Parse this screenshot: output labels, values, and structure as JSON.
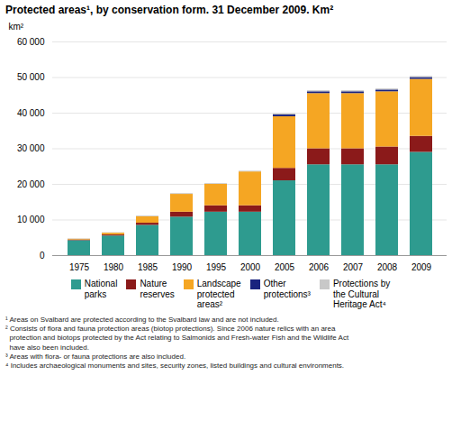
{
  "chart_data": {
    "type": "bar",
    "title": "Protected areas¹, by conservation form. 31 December 2009. Km²",
    "ylabel": "km²",
    "caption": "¹ Areas on Svalbard are protected according to the Svalbard law and are not included.\n² Consists of flora and fauna protection areas (biotop protections). Since 2006 nature relics with an area\n  protection and biotops protected by the Act relating to Salmonids and Fresh-water Fish and the Wildlife Act\n  have also been included.\n³ Areas with flora- or fauna protections are also included.\n⁴ Includes archaeological monuments and sites, security zones, listed buildings and cultural environments.",
    "categories": [
      "1975",
      "1980",
      "1985",
      "1990",
      "1995",
      "2000",
      "2005",
      "2006",
      "2007",
      "2008",
      "2009"
    ],
    "series": [
      {
        "name": "National\nparks",
        "color": "#2E9B8F",
        "values": [
          4200,
          5500,
          8500,
          10800,
          12200,
          12200,
          21000,
          25500,
          25500,
          25500,
          29000
        ]
      },
      {
        "name": "Nature\nreserves",
        "color": "#8B1A1A",
        "values": [
          200,
          300,
          600,
          1400,
          1800,
          1800,
          3500,
          4500,
          4500,
          5000,
          4500
        ]
      },
      {
        "name": "Landscape\nprotected\nareas²",
        "color": "#F5A623",
        "values": [
          200,
          500,
          1800,
          5000,
          6000,
          9500,
          14500,
          15500,
          15500,
          15500,
          16000
        ]
      },
      {
        "name": "Other\nprotections³",
        "color": "#1A237E",
        "values": [
          0,
          0,
          0,
          0,
          0,
          0,
          500,
          500,
          500,
          500,
          500
        ]
      },
      {
        "name": "Protections by\nthe Cultural\nHeritage Act⁴",
        "color": "#C8C8C8",
        "values": [
          100,
          100,
          200,
          200,
          200,
          200,
          300,
          300,
          300,
          300,
          300
        ]
      }
    ],
    "stacked": true,
    "grid": true,
    "legend": "bottom",
    "ylim": [
      0,
      60000
    ],
    "yticks": [
      0,
      {
        "value": 10000,
        "label": "10 000"
      },
      {
        "value": 20000,
        "label": "20 000"
      },
      {
        "value": 30000,
        "label": "30 000"
      },
      {
        "value": 40000,
        "label": "40 000"
      },
      {
        "value": 50000,
        "label": "50 000"
      },
      {
        "value": 60000,
        "label": "60 000"
      }
    ]
  }
}
